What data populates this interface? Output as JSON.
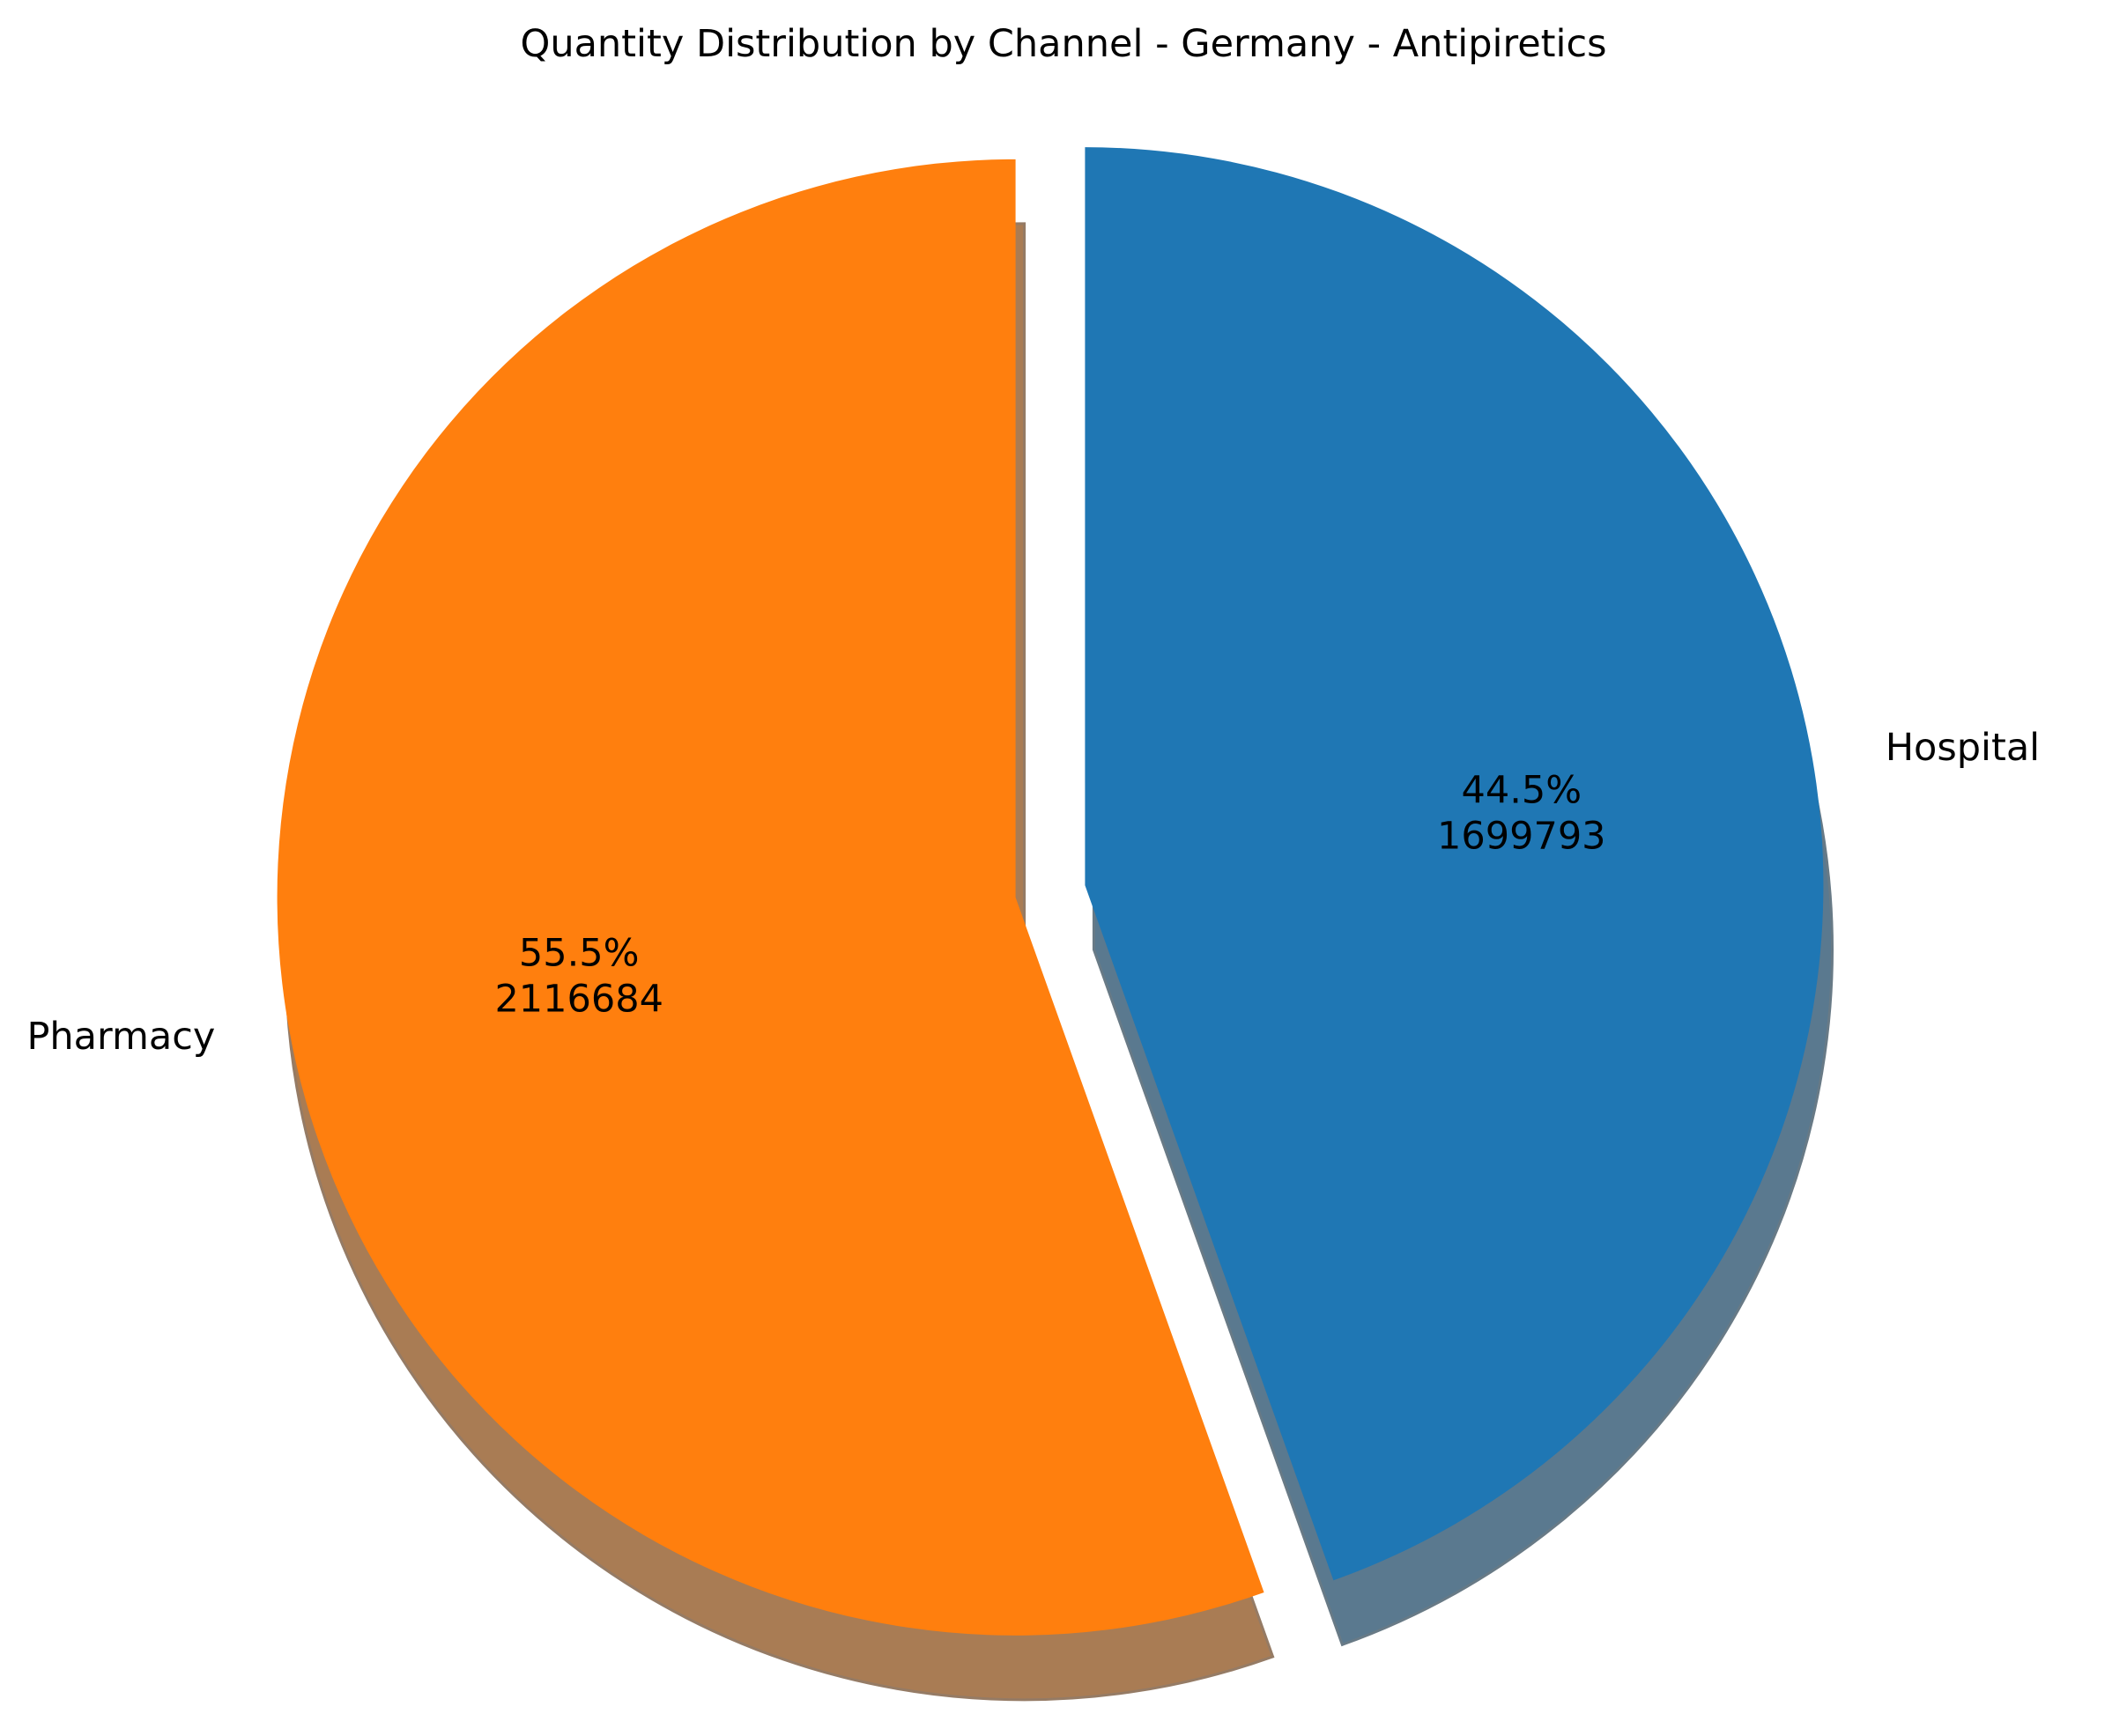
{
  "chart_data": {
    "type": "pie",
    "title": "Quantity Distribution by Channel - Germany - Antipiretics",
    "categories": [
      "Hospital",
      "Pharmacy"
    ],
    "values": [
      1699793,
      2116684
    ],
    "percent_labels": [
      "44.5%",
      "55.5%"
    ],
    "value_labels": [
      "1699793",
      "2116684"
    ],
    "colors": [
      "#1f77b4",
      "#ff7f0e"
    ],
    "start_angle_deg": 90,
    "direction": "clockwise",
    "exploded": true,
    "shadow": true,
    "legend": "none"
  }
}
